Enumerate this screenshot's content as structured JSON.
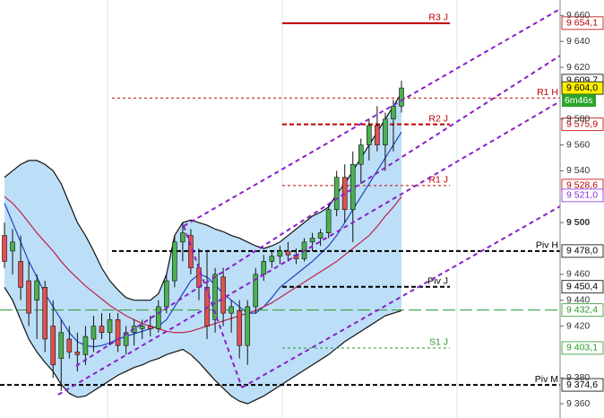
{
  "chart_data": {
    "type": "candlestick",
    "ylim": [
      9349,
      9672
    ],
    "yticks": [
      {
        "value": 9660,
        "label": "9 660"
      },
      {
        "value": 9640,
        "label": "9 640"
      },
      {
        "value": 9620,
        "label": "9 620"
      },
      {
        "value": 9580,
        "label": "9 580"
      },
      {
        "value": 9560,
        "label": "9 560"
      },
      {
        "value": 9540,
        "label": "9 540"
      },
      {
        "value": 9500,
        "label": "9 500"
      },
      {
        "value": 9460,
        "label": "9 460"
      },
      {
        "value": 9440,
        "label": "9 440"
      },
      {
        "value": 9420,
        "label": "9 420"
      },
      {
        "value": 9380,
        "label": "9 380"
      },
      {
        "value": 9360,
        "label": "9 360"
      }
    ],
    "up_color": "#4caf50",
    "down_color": "#e05050",
    "ohlc": [
      [
        9490,
        9500,
        9465,
        9470
      ],
      [
        9478,
        9495,
        9460,
        9485
      ],
      [
        9470,
        9490,
        9440,
        9450
      ],
      [
        9455,
        9470,
        9420,
        9430
      ],
      [
        9440,
        9460,
        9410,
        9455
      ],
      [
        9450,
        9455,
        9400,
        9410
      ],
      [
        9420,
        9440,
        9380,
        9390
      ],
      [
        9395,
        9425,
        9370,
        9415
      ],
      [
        9410,
        9420,
        9395,
        9400
      ],
      [
        9400,
        9415,
        9385,
        9398
      ],
      [
        9398,
        9420,
        9390,
        9412
      ],
      [
        9410,
        9428,
        9400,
        9420
      ],
      [
        9420,
        9430,
        9410,
        9415
      ],
      [
        9415,
        9430,
        9405,
        9425
      ],
      [
        9425,
        9430,
        9400,
        9405
      ],
      [
        9405,
        9420,
        9398,
        9415
      ],
      [
        9415,
        9425,
        9405,
        9420
      ],
      [
        9418,
        9425,
        9410,
        9420
      ],
      [
        9420,
        9428,
        9412,
        9418
      ],
      [
        9418,
        9440,
        9415,
        9435
      ],
      [
        9435,
        9460,
        9430,
        9455
      ],
      [
        9455,
        9490,
        9450,
        9485
      ],
      [
        9485,
        9500,
        9470,
        9492
      ],
      [
        9490,
        9495,
        9460,
        9465
      ],
      [
        9465,
        9480,
        9440,
        9450
      ],
      [
        9450,
        9478,
        9410,
        9420
      ],
      [
        9425,
        9465,
        9415,
        9460
      ],
      [
        9458,
        9465,
        9420,
        9430
      ],
      [
        9430,
        9440,
        9415,
        9435
      ],
      [
        9432,
        9440,
        9395,
        9405
      ],
      [
        9405,
        9440,
        9390,
        9435
      ],
      [
        9435,
        9465,
        9430,
        9460
      ],
      [
        9460,
        9475,
        9455,
        9470
      ],
      [
        9470,
        9478,
        9465,
        9474
      ],
      [
        9474,
        9482,
        9468,
        9478
      ],
      [
        9478,
        9485,
        9470,
        9475
      ],
      [
        9475,
        9480,
        9468,
        9472
      ],
      [
        9472,
        9488,
        9470,
        9485
      ],
      [
        9485,
        9492,
        9478,
        9488
      ],
      [
        9488,
        9495,
        9482,
        9492
      ],
      [
        9492,
        9515,
        9488,
        9510
      ],
      [
        9510,
        9540,
        9505,
        9535
      ],
      [
        9535,
        9545,
        9500,
        9510
      ],
      [
        9510,
        9555,
        9485,
        9545
      ],
      [
        9545,
        9565,
        9530,
        9560
      ],
      [
        9560,
        9580,
        9548,
        9575
      ],
      [
        9575,
        9590,
        9555,
        9560
      ],
      [
        9560,
        9585,
        9540,
        9580
      ],
      [
        9580,
        9595,
        9555,
        9590
      ],
      [
        9590,
        9609.7,
        9585,
        9604
      ]
    ],
    "band": {
      "color": "#b5dcf6",
      "upper": [
        9535,
        9540,
        9545,
        9548,
        9548,
        9545,
        9540,
        9530,
        9515,
        9500,
        9490,
        9478,
        9465,
        9455,
        9448,
        9442,
        9440,
        9440,
        9440,
        9445,
        9460,
        9490,
        9500,
        9502,
        9500,
        9498,
        9495,
        9493,
        9490,
        9488,
        9485,
        9482,
        9480,
        9482,
        9485,
        9490,
        9495,
        9500,
        9505,
        9508,
        9512,
        9522,
        9530,
        9540,
        9550,
        9560,
        9570,
        9580,
        9590,
        9600
      ],
      "lower": [
        9450,
        9440,
        9425,
        9410,
        9400,
        9392,
        9385,
        9375,
        9368,
        9365,
        9366,
        9370,
        9374,
        9378,
        9382,
        9385,
        9388,
        9390,
        9393,
        9395,
        9398,
        9400,
        9402,
        9398,
        9392,
        9385,
        9378,
        9372,
        9366,
        9362,
        9360,
        9363,
        9366,
        9370,
        9374,
        9378,
        9382,
        9386,
        9390,
        9394,
        9398,
        9403,
        9408,
        9412,
        9416,
        9420,
        9424,
        9428,
        9430,
        9432
      ]
    },
    "series": [
      {
        "color": "#2040c0",
        "values": [
          9515,
          9500,
          9485,
          9470,
          9458,
          9445,
          9435,
          9425,
          9415,
          9408,
          9405,
          9404,
          9405,
          9407,
          9410,
          9412,
          9414,
          9416,
          9418,
          9420,
          9425,
          9435,
          9445,
          9455,
          9460,
          9458,
          9452,
          9445,
          9440,
          9435,
          9430,
          9430,
          9435,
          9442,
          9450,
          9455,
          9460,
          9465,
          9470,
          9476,
          9482,
          9490,
          9500,
          9510,
          9520,
          9530,
          9540,
          9550,
          9560,
          9570
        ]
      },
      {
        "color": "#c0204a",
        "values": [
          9520,
          9515,
          9508,
          9500,
          9492,
          9485,
          9478,
          9470,
          9463,
          9457,
          9451,
          9446,
          9441,
          9436,
          9432,
          9428,
          9425,
          9422,
          9420,
          9418,
          9416,
          9415,
          9415,
          9416,
          9418,
          9420,
          9422,
          9424,
          9426,
          9428,
          9430,
          9432,
          9435,
          9438,
          9442,
          9446,
          9450,
          9454,
          9458,
          9462,
          9466,
          9470,
          9475,
          9480,
          9485,
          9490,
          9497,
          9505,
          9512,
          9520
        ]
      }
    ],
    "levels": [
      {
        "name": "R3 J",
        "value": 9654.1,
        "value_label": "9 654,1",
        "color": "#c00000",
        "dash": "none",
        "width": 2
      },
      {
        "name": "R1 H",
        "value": 9596.3,
        "color": "#c00000",
        "dash": "3 3",
        "width": 1
      },
      {
        "name": "R2 J",
        "value": 9575.9,
        "value_label": "9 575,9",
        "color": "#c00000",
        "dash": "5 3",
        "width": 2
      },
      {
        "name": "R1 J",
        "value": 9528.6,
        "value_label": "9 528,6",
        "color": "#c00000",
        "dash": "3 3",
        "width": 1
      },
      {
        "name": "Piv H",
        "value": 9478.0,
        "value_label": "9 478,0",
        "color": "#000000",
        "dash": "5 3",
        "width": 2
      },
      {
        "name": "Piv J",
        "value": 9450.4,
        "value_label": "9 450,4",
        "color": "#000000",
        "dash": "5 3",
        "width": 2
      },
      {
        "value": 9432.4,
        "value_label": "9 432,4",
        "color": "#2a9a2a",
        "dash": "14 5",
        "width": 1
      },
      {
        "name": "S1 J",
        "value": 9403.1,
        "value_label": "9 403,1",
        "color": "#2a9a2a",
        "dash": "3 3",
        "width": 1
      },
      {
        "name": "Piv M",
        "value": 9374.6,
        "value_label": "9 374,6",
        "color": "#000000",
        "dash": "5 3",
        "width": 2
      }
    ],
    "price_tags": [
      {
        "value": 9609.7,
        "label": "9 609,7",
        "color": "#000000",
        "bg": "#ffffff"
      },
      {
        "value": 9604.0,
        "label": "9 604,0",
        "color": "#000000",
        "bg": "#ffee00"
      },
      {
        "value": 9521.0,
        "label": "9 521,0",
        "color": "#8a2be2",
        "bg": "#ffffff"
      }
    ],
    "timer": "6m46s"
  }
}
